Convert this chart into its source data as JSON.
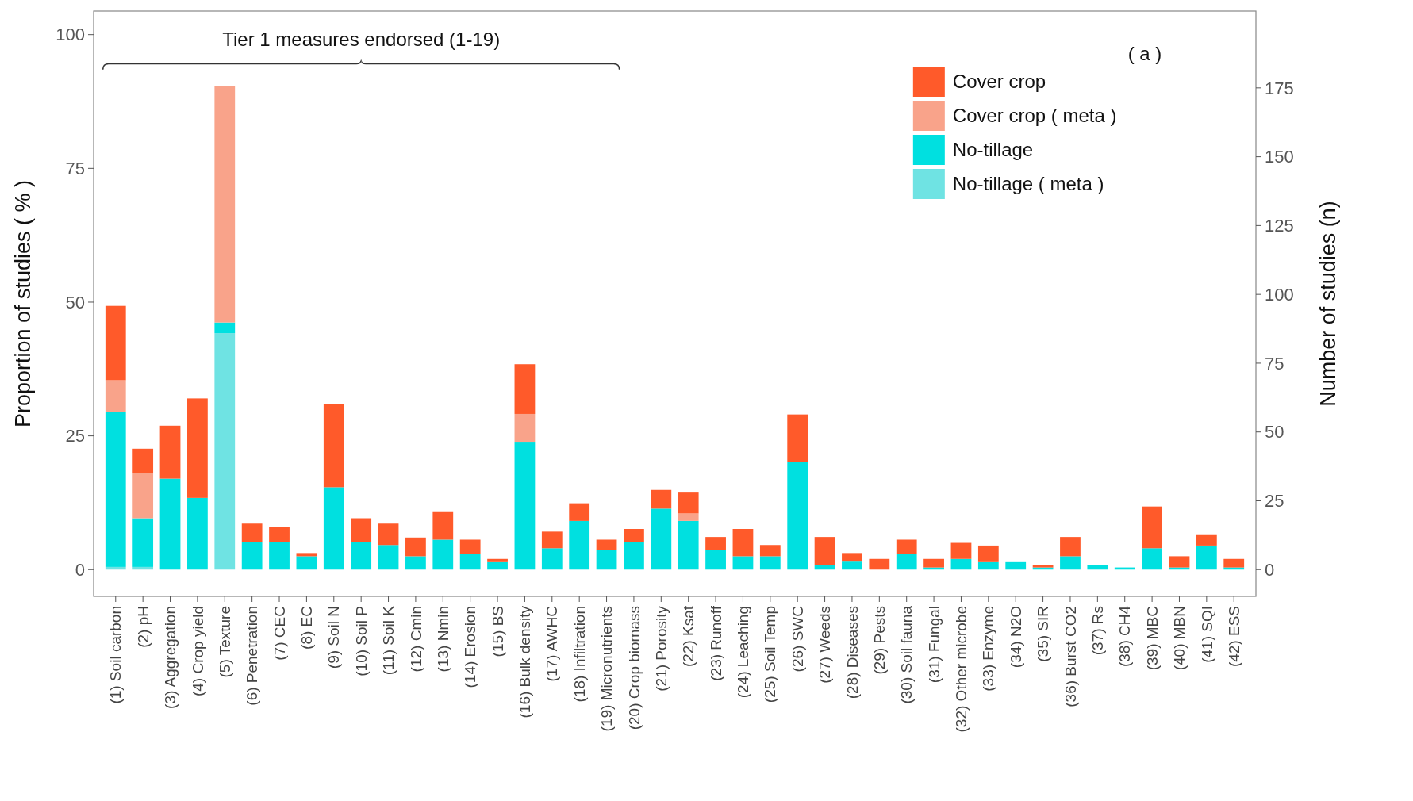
{
  "chart_data": {
    "type": "bar",
    "stacked": true,
    "ylabel": "Proportion of studies ( % )",
    "y2label": "Number of studies (n)",
    "annotations": [
      "Tier 1 measures endorsed (1-19)",
      "( a )"
    ],
    "categories": [
      "(1) Soil carbon",
      "(2) pH",
      "(3) Aggregation",
      "(4) Crop yield",
      "(5) Texture",
      "(6) Penetration",
      "(7) CEC",
      "(8) EC",
      "(9) Soil N",
      "(10) Soil P",
      "(11) Soil K",
      "(12) Cmin",
      "(13) Nmin",
      "(14) Erosion",
      "(15) BS",
      "(16) Bulk density",
      "(17) AWHC",
      "(18) Infiltration",
      "(19) Micronutrients",
      "(20) Crop biomass",
      "(21) Porosity",
      "(22) Ksat",
      "(23) Runoff",
      "(24) Leaching",
      "(25) Soil Temp",
      "(26) SWC",
      "(27) Weeds",
      "(28) Diseases",
      "(29) Pests",
      "(30) Soil fauna",
      "(31) Fungal",
      "(32) Other microbe",
      "(33) Enzyme",
      "(34) N2O",
      "(35) SIR",
      "(36) Burst CO2",
      "(37) Rs",
      "(38) CH4",
      "(39) MBC",
      "(40) MBN",
      "(41) SQI",
      "(42) ESS"
    ],
    "series": [
      {
        "name": "No-tillage ( meta )",
        "color": "#6fe3e3",
        "values": [
          0.5,
          0.5,
          0,
          0,
          44.2,
          0,
          0,
          0,
          0,
          0,
          0,
          0,
          0,
          0,
          0,
          0,
          0,
          0,
          0,
          0,
          0,
          0,
          0,
          0,
          0,
          0,
          0,
          0,
          0,
          0,
          0,
          0,
          0,
          0,
          0,
          0,
          0,
          0,
          0,
          0,
          0,
          0
        ]
      },
      {
        "name": "No-tillage",
        "color": "#00e0e0",
        "values": [
          29.0,
          9.1,
          17.0,
          13.4,
          2.0,
          5.1,
          5.1,
          2.5,
          15.4,
          5.1,
          4.6,
          2.5,
          5.6,
          3.0,
          1.4,
          23.9,
          4.0,
          9.1,
          3.6,
          5.1,
          11.4,
          9.1,
          3.6,
          2.5,
          2.5,
          20.2,
          0.9,
          1.5,
          0,
          3.0,
          0.4,
          2.0,
          1.4,
          1.4,
          0.4,
          2.5,
          0.8,
          0.4,
          4.0,
          0.4,
          4.5,
          0.4
        ]
      },
      {
        "name": "Cover crop ( meta )",
        "color": "#f9a38a",
        "values": [
          5.9,
          8.5,
          0,
          0,
          44.2,
          0,
          0,
          0,
          0,
          0,
          0,
          0,
          0,
          0,
          0,
          5.2,
          0,
          0,
          0,
          0,
          0,
          1.4,
          0,
          0,
          0,
          0,
          0,
          0,
          0,
          0,
          0,
          0,
          0,
          0,
          0,
          0,
          0,
          0,
          0,
          0,
          0,
          0
        ]
      },
      {
        "name": "Cover crop",
        "color": "#ff5a2a",
        "values": [
          13.9,
          4.5,
          9.9,
          18.6,
          0,
          3.5,
          2.9,
          0.6,
          15.6,
          4.5,
          4.0,
          3.5,
          5.3,
          2.6,
          0.6,
          9.3,
          3.1,
          3.3,
          2.0,
          2.5,
          3.5,
          3.9,
          2.5,
          5.1,
          2.1,
          8.8,
          5.2,
          1.6,
          2.0,
          2.6,
          1.6,
          3.0,
          3.1,
          0,
          0.5,
          3.6,
          0,
          0,
          7.8,
          2.1,
          2.1,
          1.6
        ]
      }
    ],
    "ylim": [
      -5,
      104.4
    ],
    "yticks": [
      0,
      25,
      50,
      75,
      100
    ],
    "y2lim": [
      -9.72,
      202.9
    ],
    "y2ticks": [
      0,
      25,
      50,
      75,
      100,
      125,
      150,
      175
    ],
    "grid": false,
    "legend": "top right"
  }
}
